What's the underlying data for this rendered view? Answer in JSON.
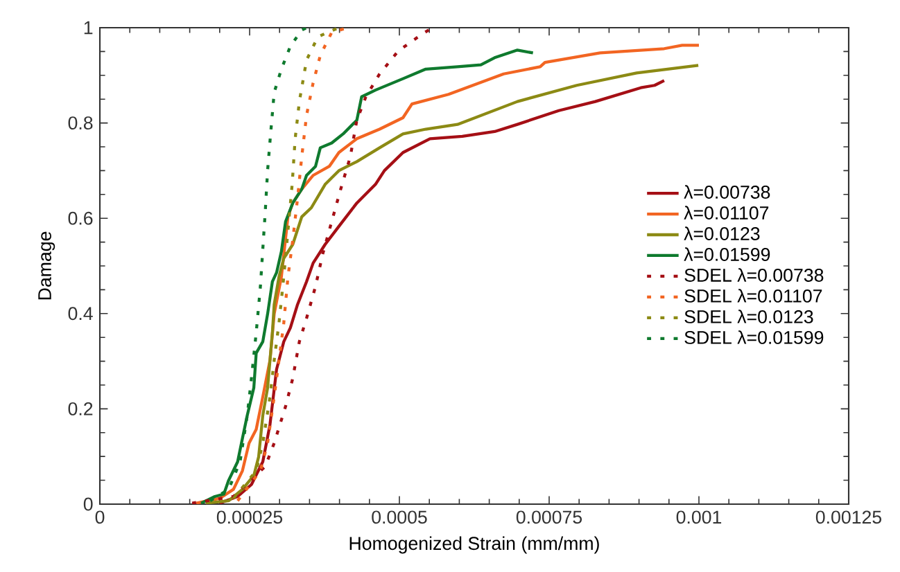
{
  "chart_data": {
    "type": "line",
    "xlabel": "Homogenized Strain (mm/mm)",
    "ylabel": "Damage",
    "xlim": [
      0,
      0.00125
    ],
    "xticks": [
      0,
      0.00025,
      0.0005,
      0.00075,
      0.001,
      0.00125
    ],
    "ylim": [
      0,
      1
    ],
    "yticks": [
      0,
      0.2,
      0.4,
      0.6,
      0.8,
      1
    ],
    "legend": "right",
    "grid": false,
    "marker": "none",
    "series": [
      {
        "name": "λ=0.00738",
        "color": "#a50f15",
        "line_style": "solid",
        "x": [
          0.0002,
          0.00023,
          0.000253,
          0.000272,
          0.000284,
          0.000295,
          0.000307,
          0.000318,
          0.00033,
          0.000345,
          0.000356,
          0.000376,
          0.000399,
          0.000429,
          0.00046,
          0.000475,
          0.000506,
          0.000551,
          0.000605,
          0.000659,
          0.000697,
          0.000766,
          0.000827,
          0.000903,
          0.000926,
          0.000942
        ],
        "values": [
          0.002,
          0.016,
          0.041,
          0.089,
          0.167,
          0.283,
          0.341,
          0.37,
          0.419,
          0.467,
          0.506,
          0.545,
          0.583,
          0.632,
          0.671,
          0.7,
          0.738,
          0.767,
          0.772,
          0.782,
          0.797,
          0.826,
          0.845,
          0.874,
          0.879,
          0.889
        ]
      },
      {
        "name": "λ=0.01107",
        "color": "#f26522",
        "line_style": "solid",
        "x": [
          0.000161,
          0.0002,
          0.000223,
          0.000238,
          0.000249,
          0.000261,
          0.000272,
          0.000284,
          0.000291,
          0.000303,
          0.000314,
          0.000322,
          0.000337,
          0.000356,
          0.000383,
          0.000399,
          0.000429,
          0.000467,
          0.000506,
          0.000521,
          0.000582,
          0.000674,
          0.000735,
          0.000743,
          0.000835,
          0.000942,
          0.000972,
          0.001
        ],
        "values": [
          0.002,
          0.012,
          0.031,
          0.07,
          0.128,
          0.157,
          0.225,
          0.302,
          0.399,
          0.477,
          0.603,
          0.632,
          0.661,
          0.69,
          0.709,
          0.738,
          0.767,
          0.787,
          0.811,
          0.84,
          0.86,
          0.903,
          0.918,
          0.927,
          0.947,
          0.956,
          0.963,
          0.963
        ]
      },
      {
        "name": "λ=0.0123",
        "color": "#8c8a14",
        "line_style": "solid",
        "x": [
          0.000177,
          0.000215,
          0.000238,
          0.000257,
          0.000265,
          0.000272,
          0.00028,
          0.000288,
          0.000291,
          0.000299,
          0.000307,
          0.000322,
          0.000337,
          0.000353,
          0.000376,
          0.000399,
          0.000429,
          0.000467,
          0.000506,
          0.000544,
          0.000597,
          0.000697,
          0.000796,
          0.000896,
          0.000999
        ],
        "values": [
          0.002,
          0.007,
          0.031,
          0.06,
          0.099,
          0.186,
          0.244,
          0.36,
          0.419,
          0.477,
          0.516,
          0.545,
          0.603,
          0.622,
          0.671,
          0.7,
          0.719,
          0.748,
          0.777,
          0.787,
          0.797,
          0.845,
          0.879,
          0.905,
          0.921
        ]
      },
      {
        "name": "λ=0.01599",
        "color": "#0f7a2e",
        "line_style": "solid",
        "x": [
          0.000169,
          0.000192,
          0.000207,
          0.000215,
          0.00023,
          0.000238,
          0.000246,
          0.000257,
          0.000261,
          0.000272,
          0.00028,
          0.000288,
          0.000295,
          0.000303,
          0.00031,
          0.000322,
          0.000337,
          0.000345,
          0.00036,
          0.000368,
          0.000387,
          0.000406,
          0.000429,
          0.000437,
          0.00046,
          0.000506,
          0.000544,
          0.000597,
          0.000636,
          0.000659,
          0.000697,
          0.000723
        ],
        "values": [
          0.002,
          0.016,
          0.021,
          0.05,
          0.089,
          0.138,
          0.186,
          0.244,
          0.317,
          0.341,
          0.399,
          0.467,
          0.486,
          0.53,
          0.593,
          0.632,
          0.661,
          0.69,
          0.709,
          0.748,
          0.758,
          0.777,
          0.806,
          0.855,
          0.869,
          0.893,
          0.913,
          0.918,
          0.922,
          0.937,
          0.953,
          0.947
        ]
      },
      {
        "name": "SDEL λ=0.00738",
        "color": "#a50f15",
        "line_style": "dotted",
        "x": [
          0.000154,
          0.000223,
          0.000276,
          0.000291,
          0.00031,
          0.000322,
          0.000333,
          0.000345,
          0.00036,
          0.000372,
          0.000387,
          0.000402,
          0.000418,
          0.000429,
          0.000444,
          0.000467,
          0.000498,
          0.000536,
          0.000555
        ],
        "values": [
          0.002,
          0.016,
          0.079,
          0.128,
          0.205,
          0.264,
          0.341,
          0.39,
          0.457,
          0.525,
          0.593,
          0.661,
          0.729,
          0.806,
          0.855,
          0.903,
          0.951,
          0.985,
          1
        ]
      },
      {
        "name": "SDEL λ=0.01107",
        "color": "#f26522",
        "line_style": "dotted",
        "x": [
          0.00023,
          0.000268,
          0.00028,
          0.000291,
          0.000299,
          0.000307,
          0.000314,
          0.000322,
          0.00033,
          0.000337,
          0.000345,
          0.000356,
          0.000368,
          0.000387,
          0.000414
        ],
        "values": [
          0.007,
          0.07,
          0.128,
          0.225,
          0.302,
          0.38,
          0.477,
          0.554,
          0.642,
          0.729,
          0.816,
          0.884,
          0.942,
          0.99,
          1
        ]
      },
      {
        "name": "SDEL λ=0.0123",
        "color": "#8c8a14",
        "line_style": "dotted",
        "x": [
          0.000223,
          0.000261,
          0.000272,
          0.000284,
          0.000291,
          0.000299,
          0.000307,
          0.000314,
          0.000321,
          0.000326,
          0.000333,
          0.000345,
          0.000364,
          0.000399
        ],
        "values": [
          0.012,
          0.07,
          0.128,
          0.225,
          0.302,
          0.38,
          0.477,
          0.574,
          0.671,
          0.767,
          0.845,
          0.932,
          0.981,
          1
        ]
      },
      {
        "name": "SDEL λ=0.01599",
        "color": "#0f7a2e",
        "line_style": "dotted",
        "x": [
          0.000184,
          0.000215,
          0.000234,
          0.000246,
          0.000253,
          0.000261,
          0.000268,
          0.000272,
          0.000276,
          0.00028,
          0.000285,
          0.000291,
          0.000303,
          0.000318,
          0.000337,
          0.000345
        ],
        "values": [
          0.007,
          0.031,
          0.089,
          0.186,
          0.264,
          0.36,
          0.457,
          0.535,
          0.612,
          0.7,
          0.777,
          0.864,
          0.913,
          0.961,
          0.995,
          1
        ]
      }
    ]
  }
}
